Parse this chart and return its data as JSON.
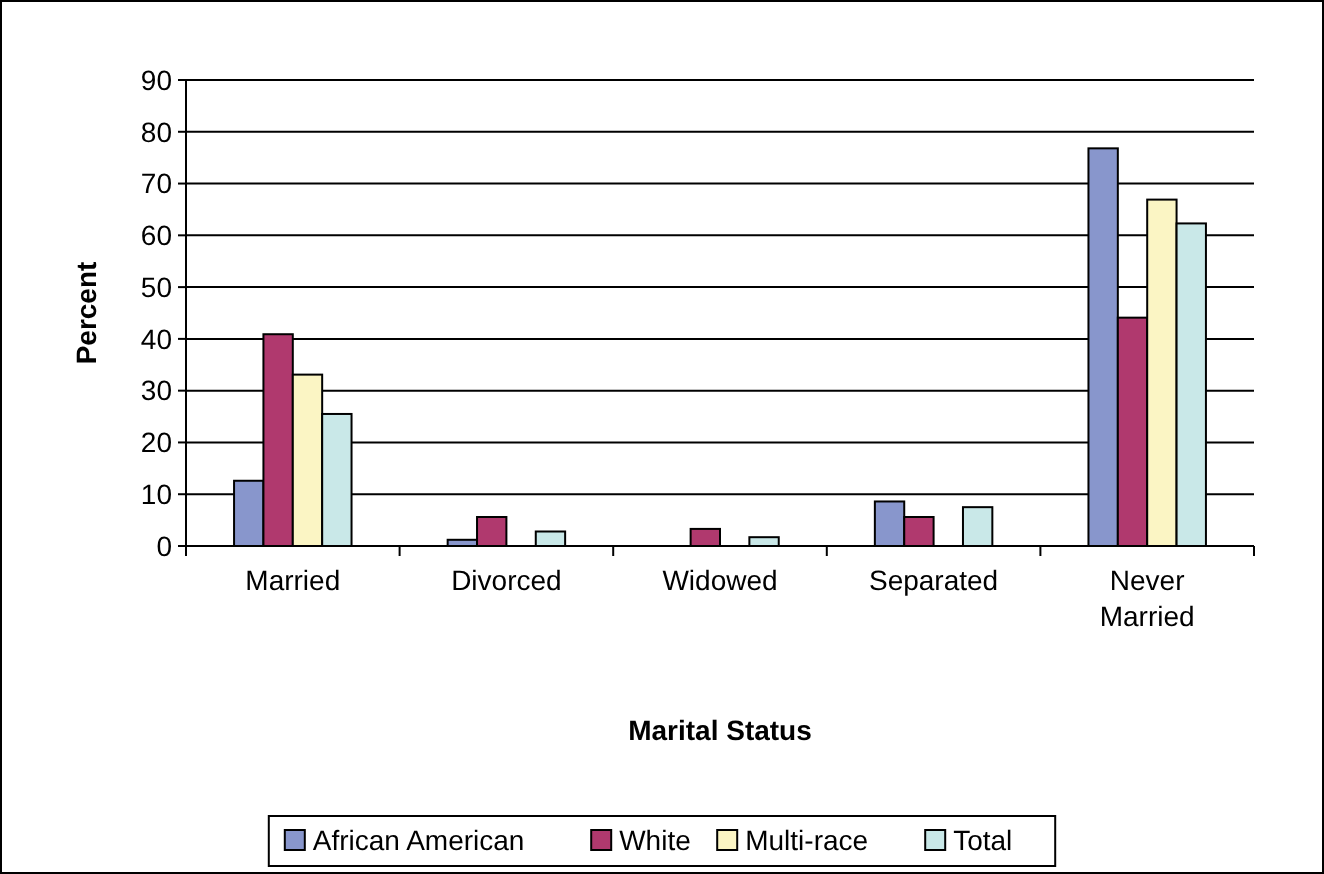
{
  "chart_data": {
    "type": "bar",
    "xlabel": "Marital Status",
    "ylabel": "Percent",
    "categories": [
      "Married",
      "Divorced",
      "Widowed",
      "Separated",
      "Never Married"
    ],
    "series": [
      {
        "name": "African American",
        "color": "#8896cc",
        "values": [
          12.6,
          1.2,
          null,
          8.6,
          76.8
        ]
      },
      {
        "name": "White",
        "color": "#b0396e",
        "values": [
          40.9,
          5.6,
          3.3,
          5.6,
          44.1
        ]
      },
      {
        "name": "Multi-race",
        "color": "#fbf5c4",
        "values": [
          33.1,
          null,
          null,
          null,
          66.9
        ]
      },
      {
        "name": "Total",
        "color": "#c9e8e8",
        "values": [
          25.5,
          2.8,
          1.7,
          7.5,
          62.3
        ]
      }
    ],
    "ylim": [
      0,
      90
    ],
    "yticks": [
      0,
      10,
      20,
      30,
      40,
      50,
      60,
      70,
      80,
      90
    ],
    "grid": "y",
    "legend": "bottom"
  }
}
